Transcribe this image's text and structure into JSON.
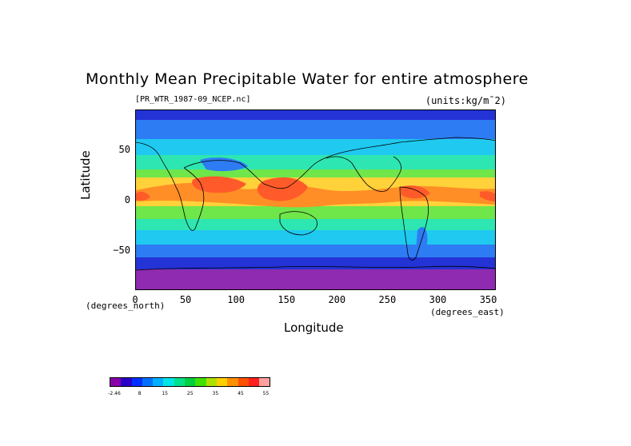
{
  "figure": {
    "title": "Monthly Mean Precipitable Water for entire atmosphere",
    "file_label": "[PR_WTR_1987-09_NCEP.nc]",
    "units_label": "(units:kg/m¯2)",
    "x_axis_label": "Longitude",
    "y_axis_label": "Latitude",
    "x_unit_left": "(degrees_north)",
    "x_unit_right": "(degrees_east)"
  },
  "axes": {
    "x_ticks": [
      "0",
      "50",
      "100",
      "150",
      "200",
      "250",
      "300",
      "350"
    ],
    "x_tick_values": [
      0,
      50,
      100,
      150,
      200,
      250,
      300,
      350
    ],
    "x_range": [
      0,
      357.5
    ],
    "y_ticks": [
      "50",
      "0",
      "−50"
    ],
    "y_tick_values": [
      50,
      0,
      -50
    ],
    "y_range": [
      -90,
      90
    ]
  },
  "colorbar": {
    "colors": [
      "#8800aa",
      "#2a00c8",
      "#0030ff",
      "#0070ff",
      "#00b0ff",
      "#00e6e6",
      "#00e08a",
      "#00d040",
      "#40e000",
      "#b0e000",
      "#ffd000",
      "#ff9000",
      "#ff5000",
      "#ff2020",
      "#ffa0a0"
    ],
    "labels": [
      "-2.46",
      "8",
      "15",
      "25",
      "35",
      "45",
      "55"
    ]
  },
  "map_colors": {
    "polar": "#8e2bb0",
    "cold": "#2433d6",
    "cool": "#2d7cf3",
    "mid_low": "#1fc9f0",
    "mid": "#2ee6b2",
    "warm_mid": "#6fe64a",
    "warm": "#ffd23a",
    "hot": "#ff8e26",
    "hottest": "#ff5a2a"
  }
}
